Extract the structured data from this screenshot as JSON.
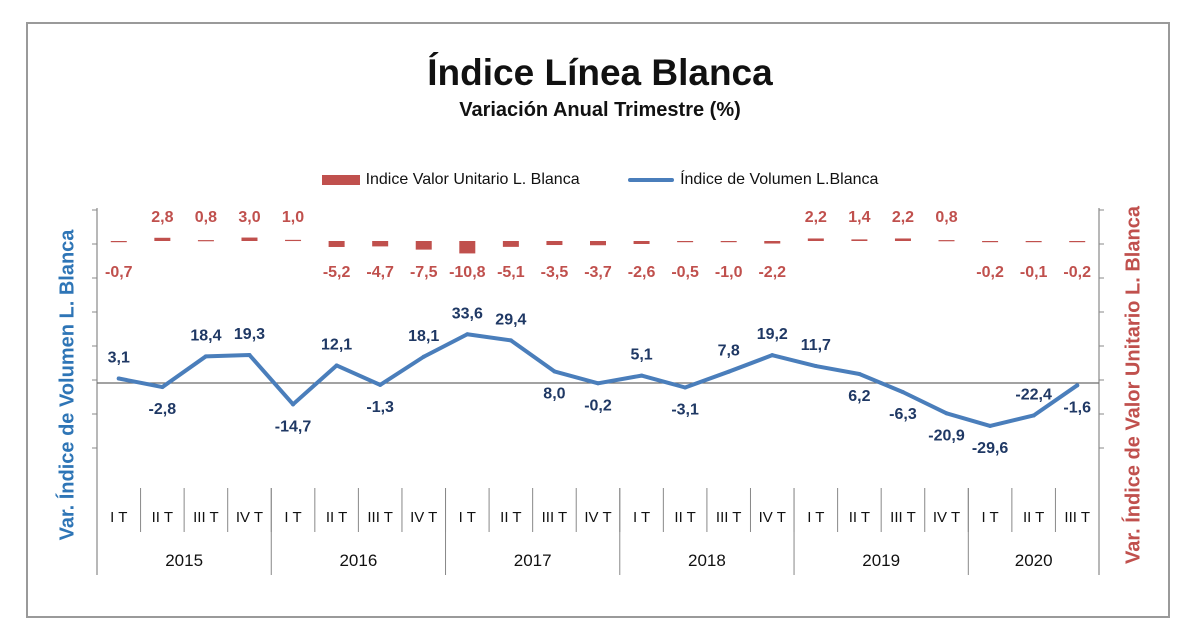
{
  "chart_data": {
    "type": "bar+line",
    "title": "Índice Línea Blanca",
    "subtitle": "Variación Anual Trimestre  (%)",
    "ylabel_left": "Var. Índice de Volumen L. Blanca",
    "ylabel_right": "Var. Índice de Valor Unitario L. Blanca",
    "legend_placement": "top",
    "quarters": [
      "I T",
      "II T",
      "III T",
      "IV T",
      "I T",
      "II T",
      "III T",
      "IV T",
      "I T",
      "II T",
      "III T",
      "IV T",
      "I T",
      "II T",
      "III T",
      "IV T",
      "I T",
      "II T",
      "III T",
      "IV T",
      "I T",
      "II T",
      "III T"
    ],
    "years": [
      "2015",
      "2016",
      "2017",
      "2018",
      "2019",
      "2020"
    ],
    "year_quarter_counts": [
      4,
      4,
      4,
      4,
      4,
      3
    ],
    "series": [
      {
        "name": "Indice Valor Unitario L. Blanca",
        "type": "bar",
        "color": "#c0504d",
        "values": [
          -0.7,
          2.8,
          0.8,
          3.0,
          1.0,
          -5.2,
          -4.7,
          -7.5,
          -10.8,
          -5.1,
          -3.5,
          -3.7,
          -2.6,
          -0.5,
          -1.0,
          -2.2,
          2.2,
          1.4,
          2.2,
          0.8,
          -0.2,
          -0.1,
          -0.2
        ],
        "labels": [
          "-0,7",
          "2,8",
          "0,8",
          "3,0",
          "1,0",
          "-5,2",
          "-4,7",
          "-7,5",
          "-10,8",
          "-5,1",
          "-3,5",
          "-3,7",
          "-2,6",
          "-0,5",
          "-1,0",
          "-2,2",
          "2,2",
          "1,4",
          "2,2",
          "0,8",
          "-0,2",
          "-0,1",
          "-0,2"
        ]
      },
      {
        "name": "Índice de Volumen L.Blanca",
        "type": "line",
        "color": "#4a7ebb",
        "values": [
          3.1,
          -2.8,
          18.4,
          19.3,
          -14.7,
          12.1,
          -1.3,
          18.1,
          33.6,
          29.4,
          8.0,
          -0.2,
          5.1,
          -3.1,
          7.8,
          19.2,
          11.7,
          6.2,
          -6.3,
          -20.9,
          -29.6,
          -22.4,
          -1.6
        ],
        "labels": [
          "3,1",
          "-2,8",
          "18,4",
          "19,3",
          "-14,7",
          "12,1",
          "-1,3",
          "18,1",
          "33,6",
          "29,4",
          "8,0",
          "-0,2",
          "5,1",
          "-3,1",
          "7,8",
          "19,2",
          "11,7",
          "6,2",
          "-6,3",
          "-20,9",
          "-29,6",
          "-22,4",
          "-1,6"
        ]
      }
    ]
  }
}
